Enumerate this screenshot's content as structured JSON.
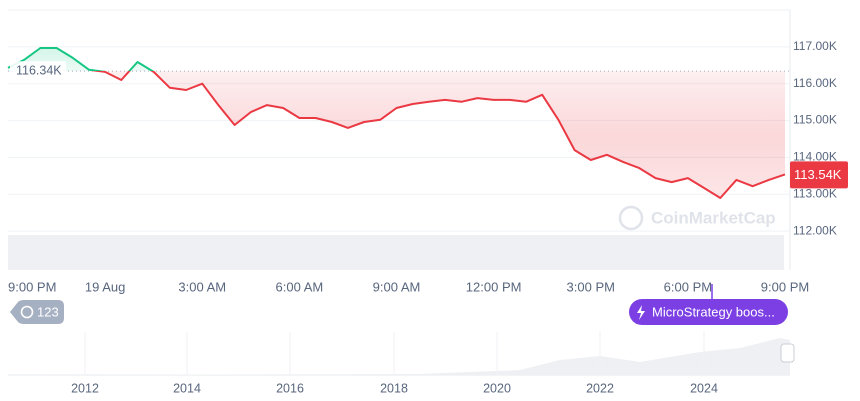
{
  "chart_data": {
    "type": "line",
    "categories": [
      "9:00 PM",
      null,
      null,
      null,
      null,
      null,
      "19 Aug",
      null,
      null,
      null,
      null,
      null,
      "3:00 AM",
      null,
      null,
      null,
      null,
      null,
      "6:00 AM",
      null,
      null,
      null,
      null,
      null,
      "9:00 AM",
      null,
      null,
      null,
      null,
      null,
      "12:00 PM",
      null,
      null,
      null,
      null,
      null,
      "3:00 PM",
      null,
      null,
      null,
      null,
      null,
      "6:00 PM",
      null,
      null,
      null,
      null,
      null,
      "9:00 PM"
    ],
    "values": [
      116.43,
      116.65,
      116.97,
      116.97,
      116.7,
      116.38,
      116.32,
      116.1,
      116.59,
      116.32,
      115.89,
      115.83,
      116.0,
      115.42,
      114.88,
      115.23,
      115.42,
      115.34,
      115.07,
      115.07,
      114.96,
      114.8,
      114.96,
      115.02,
      115.34,
      115.45,
      115.51,
      115.56,
      115.51,
      115.61,
      115.56,
      115.56,
      115.51,
      115.7,
      115.02,
      114.2,
      113.93,
      114.07,
      113.88,
      113.71,
      113.44,
      113.33,
      113.44,
      113.17,
      112.9,
      113.39,
      113.22,
      113.39,
      113.54
    ],
    "ylim": [
      111,
      118
    ],
    "yticks": [
      {
        "value": 112,
        "label": "112.00K"
      },
      {
        "value": 113,
        "label": "113.00K"
      },
      {
        "value": 114,
        "label": "114.00K"
      },
      {
        "value": 115,
        "label": "115.00K"
      },
      {
        "value": 116,
        "label": "116.00K"
      },
      {
        "value": 117,
        "label": "117.00K"
      }
    ],
    "grid": true,
    "baseline": {
      "value": 116.34,
      "label": "116.34K"
    },
    "last_price": {
      "value": 113.54,
      "label": "113.54K"
    },
    "up_color": "#16c784",
    "down_color": "#ea3943",
    "watermark": "CoinMarketCap"
  },
  "history_badge": "123",
  "event_badge": "MicroStrategy boos...",
  "navigator": {
    "x_labels": [
      "2012",
      "2014",
      "2016",
      "2018",
      "2020",
      "2022",
      "2024"
    ]
  }
}
